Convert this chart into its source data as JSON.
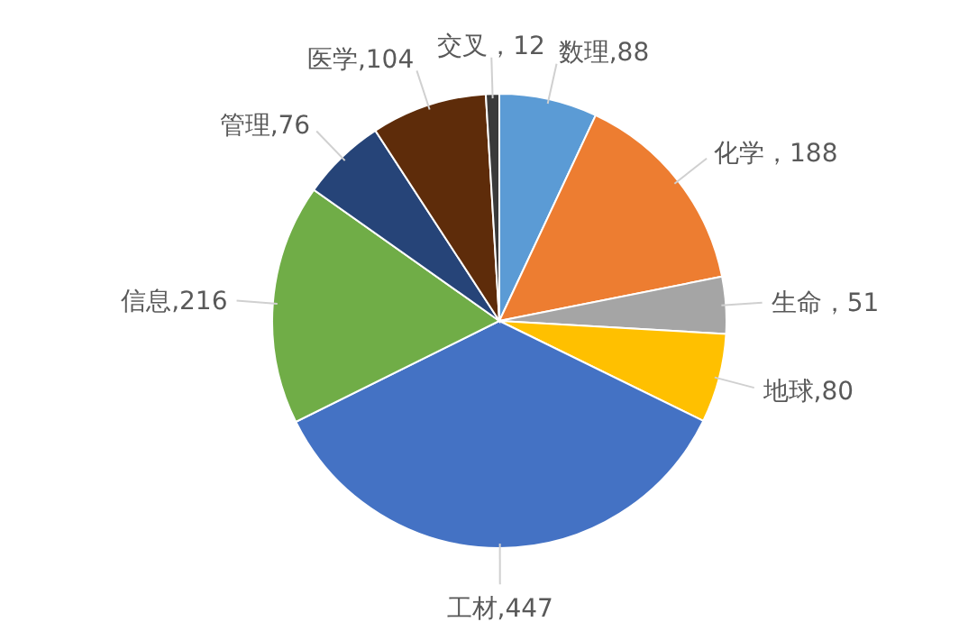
{
  "chart_data": {
    "type": "pie",
    "categories": [
      "数理,88",
      "化学，188",
      "生命，51",
      "地球,80",
      "工材,447",
      "信息,216",
      "管理,76",
      "医学,104",
      "交叉，12"
    ],
    "values": [
      88,
      188,
      51,
      80,
      447,
      216,
      76,
      104,
      12
    ],
    "colors": [
      "#5b9bd5",
      "#ed7d31",
      "#a5a5a5",
      "#ffc000",
      "#4472c4",
      "#70ad47",
      "#264478",
      "#5e2c0a",
      "#3a3a3a"
    ]
  }
}
